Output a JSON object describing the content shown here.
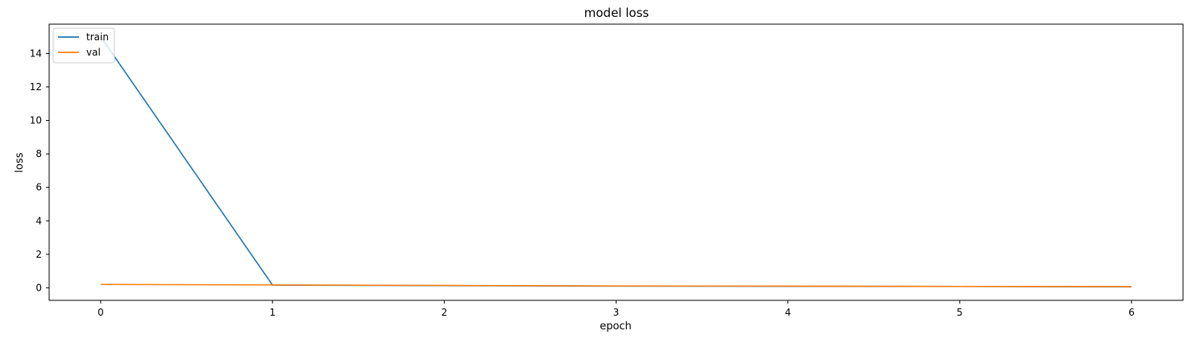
{
  "chart_data": {
    "type": "line",
    "title": "model loss",
    "xlabel": "epoch",
    "ylabel": "loss",
    "x": [
      0,
      1,
      2,
      3,
      4,
      5,
      6
    ],
    "xlim": [
      -0.3,
      6.3
    ],
    "ylim": [
      -0.75,
      15.75
    ],
    "xticks": [
      0,
      1,
      2,
      3,
      4,
      5,
      6
    ],
    "yticks": [
      0,
      2,
      4,
      6,
      8,
      10,
      12,
      14
    ],
    "grid": false,
    "legend_position": "upper-left",
    "series": [
      {
        "name": "train",
        "color": "#1f77b4",
        "values": [
          15.0,
          0.16,
          0.13,
          0.1,
          0.09,
          0.08,
          0.06
        ]
      },
      {
        "name": "val",
        "color": "#ff7f0e",
        "values": [
          0.2,
          0.17,
          0.14,
          0.11,
          0.1,
          0.08,
          0.07
        ]
      }
    ]
  }
}
